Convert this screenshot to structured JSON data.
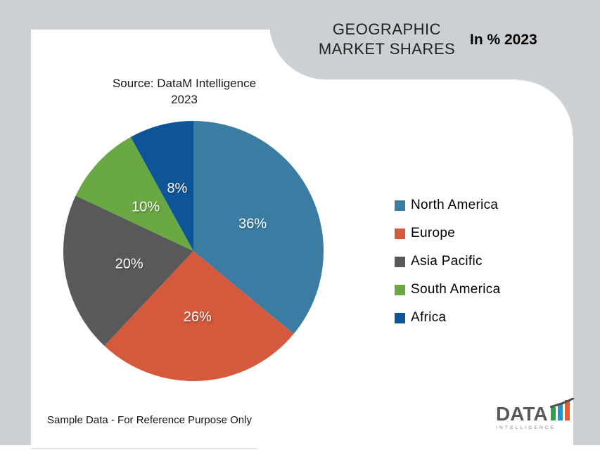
{
  "header": {
    "title_line1": "GEOGRAPHIC",
    "title_line2": "MARKET SHARES",
    "unit_label": "In % 2023"
  },
  "source": {
    "line1": "Source: DataM Intelligence",
    "line2": "2023"
  },
  "footer": {
    "disclaimer": "Sample Data - For Reference Purpose Only"
  },
  "logo": {
    "wordmark": "DATA",
    "subtext": "INTELLIGENCE",
    "bar_colors": [
      "#2FA14B",
      "#1E96D2",
      "#F05A28"
    ],
    "swoosh_color": "#4D4D4F"
  },
  "colors": {
    "background_gray": "#CDD0D2",
    "panel_white": "#FFFFFF",
    "data_label_text": "#FFFFFF"
  },
  "chart_data": {
    "type": "pie",
    "title": "GEOGRAPHIC MARKET SHARES",
    "unit": "In % 2023",
    "labels": [
      "North America",
      "Europe",
      "Asia Pacific",
      "South America",
      "Africa"
    ],
    "values": [
      36,
      26,
      20,
      10,
      8
    ],
    "value_labels": [
      "36%",
      "26%",
      "20%",
      "10%",
      "8%"
    ],
    "colors": [
      "#3A7CA2",
      "#D55A3D",
      "#595959",
      "#6AA843",
      "#0E5499"
    ],
    "start_angle_deg": 0,
    "direction": "clockwise",
    "data_labels": "inside",
    "legend_position": "right"
  }
}
